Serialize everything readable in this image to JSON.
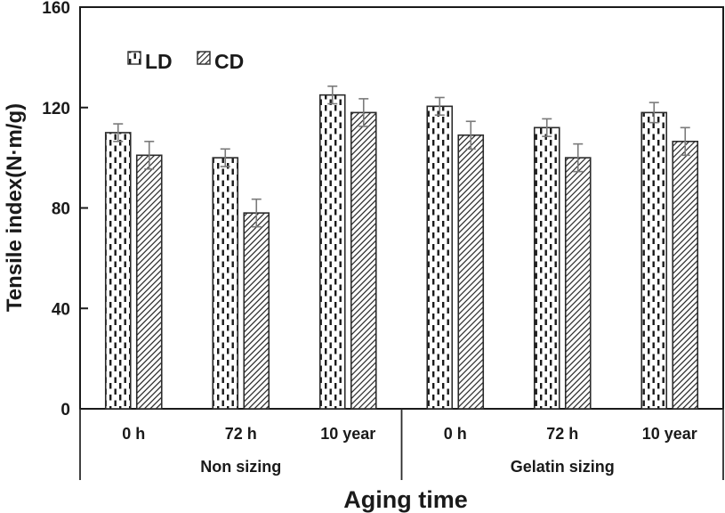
{
  "figure": {
    "background": "#ffffff",
    "axis_color": "#1a1a1a",
    "bar_edge_color": "#2b2b2b",
    "error_bar_color": "#7a7a7a",
    "bar_fill": "#ffffff"
  },
  "chart_data": {
    "type": "bar",
    "title": "",
    "xlabel": "Aging time",
    "ylabel": "Tensile index(N·m/g)",
    "ylim": [
      0,
      160
    ],
    "yticks": [
      0,
      40,
      80,
      120,
      160
    ],
    "grid": false,
    "legend": {
      "position": "top-left-inside",
      "entries": [
        "LD",
        "CD"
      ]
    },
    "categories": [
      "0 h",
      "72 h",
      "10 year",
      "0 h",
      "72 h",
      "10 year"
    ],
    "sections": [
      {
        "label": "Non sizing",
        "span": [
          0,
          2
        ]
      },
      {
        "label": "Gelatin sizing",
        "span": [
          3,
          5
        ]
      }
    ],
    "series": [
      {
        "name": "LD",
        "pattern": "vertical-dashes",
        "values": [
          110,
          100,
          125,
          120.5,
          112,
          118
        ],
        "errors": [
          3.5,
          3.5,
          3.5,
          3.5,
          3.5,
          4
        ]
      },
      {
        "name": "CD",
        "pattern": "diagonal-hatch",
        "values": [
          101,
          78,
          118,
          109,
          100,
          106.5
        ],
        "errors": [
          5.5,
          5.5,
          5.5,
          5.5,
          5.5,
          5.5
        ]
      }
    ]
  }
}
